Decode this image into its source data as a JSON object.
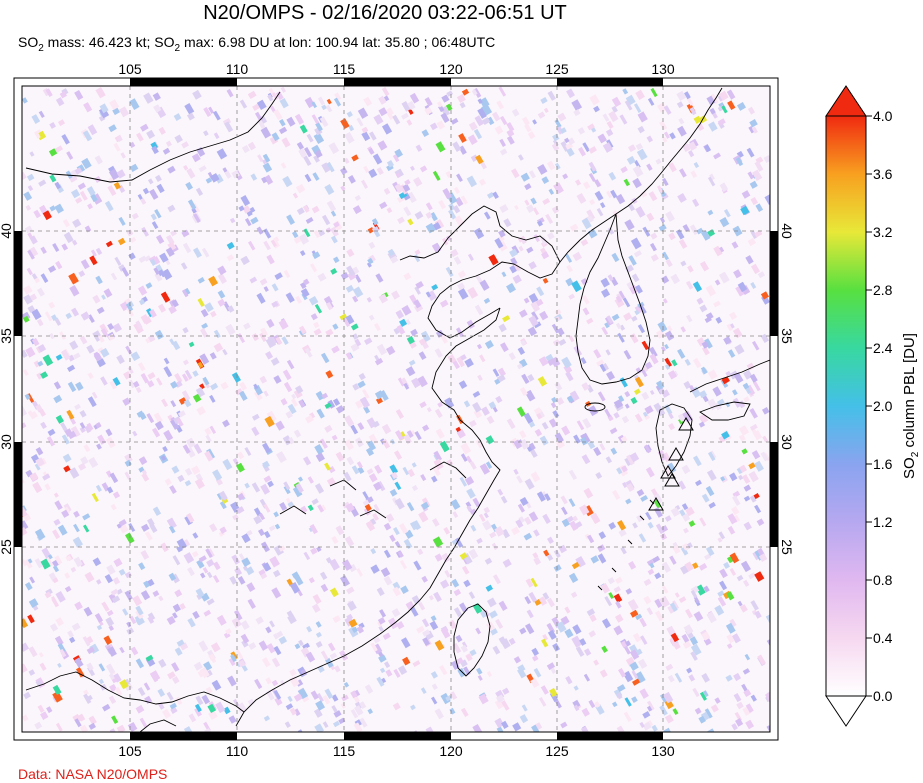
{
  "header": {
    "title": "N20/OMPS - 02/16/2020 03:22-06:51 UT",
    "subtitle_parts": {
      "mass_prefix": "SO",
      "mass_sub": "2",
      "mass_text": " mass: 46.423 kt; SO",
      "max_sub": "2",
      "max_text": " max: 6.98 DU at lon: 100.94 lat: 35.80 ; 06:48UTC"
    }
  },
  "map": {
    "lon_ticks": [
      "105",
      "110",
      "115",
      "120",
      "125",
      "130"
    ],
    "lat_ticks": [
      "40",
      "35",
      "30",
      "25"
    ]
  },
  "colorbar": {
    "label_prefix": "SO",
    "label_sub": "2",
    "label_suffix": " column PBL [DU]",
    "ticks": [
      "4.0",
      "3.6",
      "3.2",
      "2.8",
      "2.4",
      "2.0",
      "1.6",
      "1.2",
      "0.8",
      "0.4",
      "0.0"
    ],
    "min": 0.0,
    "max": 4.0
  },
  "footer": {
    "credit": "Data: NASA N20/OMPS"
  }
}
